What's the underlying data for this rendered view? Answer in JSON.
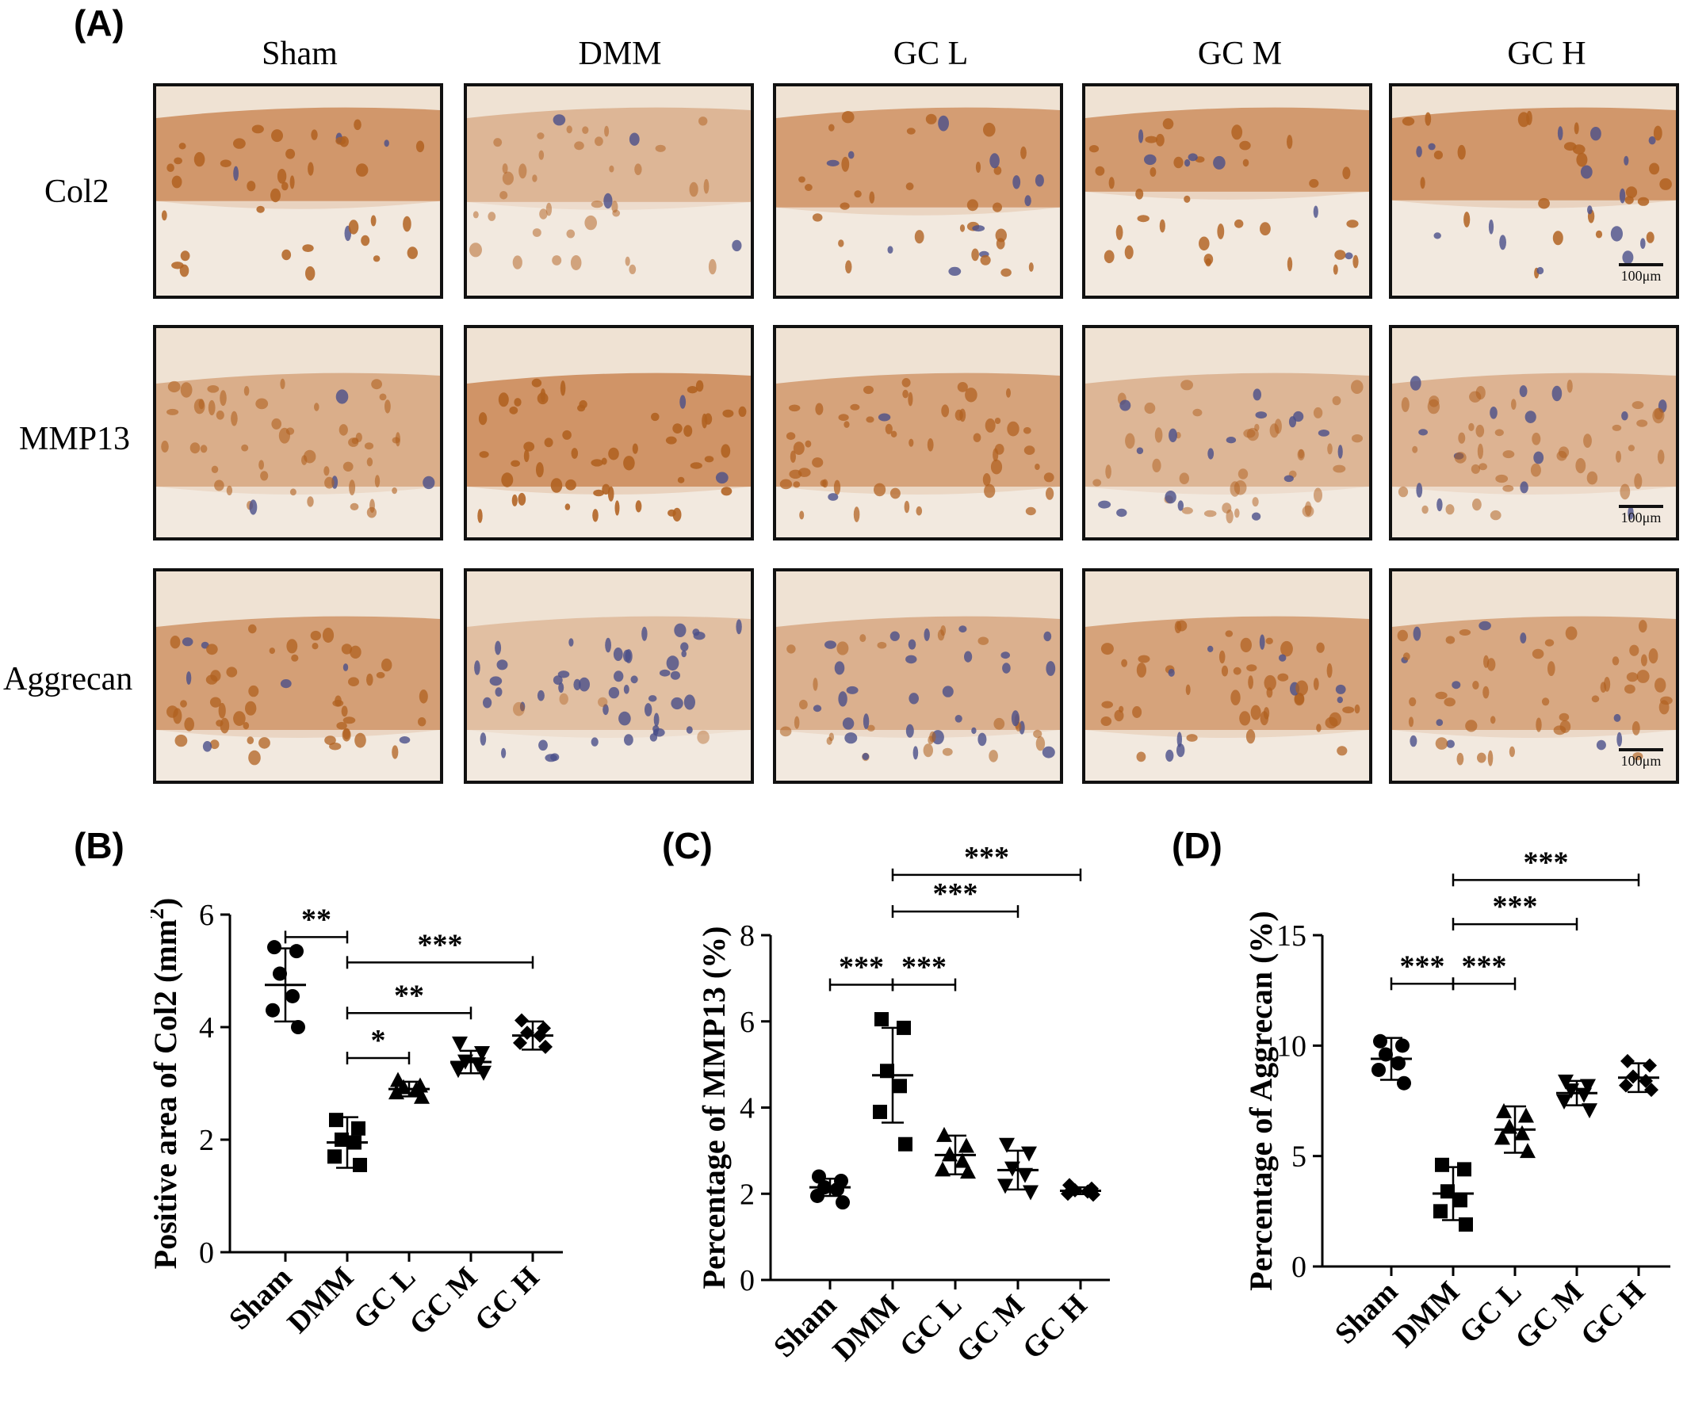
{
  "panels": {
    "A": "(A)",
    "B": "(B)",
    "C": "(C)",
    "D": "(D)"
  },
  "micrographs": {
    "columns": [
      "Sham",
      "DMM",
      "GC L",
      "GC M",
      "GC H"
    ],
    "rows": [
      "Col2",
      "MMP13",
      "Aggrecan"
    ],
    "scale_bar": "100μm",
    "colors": {
      "stain_brown": "#c9834f",
      "matrix": "#efe2d3",
      "nuclei_blue": "#4a4f8a"
    }
  },
  "chart_data": [
    {
      "type": "scatter",
      "ylabel": "Positive area of Col2 (mm²)",
      "ylabel_main": "Positive area of Col2 (mm",
      "ylabel_sup": "2",
      "ylabel_close": ")",
      "categories": [
        "Sham",
        "DMM",
        "GC L",
        "GC M",
        "GC H"
      ],
      "ylim": [
        0,
        6
      ],
      "yticks": [
        0,
        2,
        4,
        6
      ],
      "markers": [
        "circle",
        "square",
        "triangle",
        "triangle-down",
        "diamond"
      ],
      "points": [
        [
          5.42,
          5.35,
          4.95,
          4.55,
          4.3,
          4.0
        ],
        [
          2.35,
          2.2,
          2.0,
          1.95,
          1.7,
          1.55
        ],
        [
          3.05,
          2.95,
          2.92,
          2.88,
          2.83,
          2.75
        ],
        [
          3.72,
          3.55,
          3.4,
          3.35,
          3.25,
          3.2
        ],
        [
          4.12,
          3.98,
          3.9,
          3.85,
          3.72,
          3.65
        ]
      ],
      "mean": [
        4.75,
        1.95,
        2.9,
        3.38,
        3.85
      ],
      "sd": [
        0.65,
        0.45,
        0.13,
        0.2,
        0.25
      ],
      "significance": [
        {
          "from": 0,
          "to": 1,
          "label": "**",
          "y": 5.6
        },
        {
          "from": 1,
          "to": 4,
          "label": "***",
          "y": 5.15
        },
        {
          "from": 1,
          "to": 3,
          "label": "**",
          "y": 4.25
        },
        {
          "from": 1,
          "to": 2,
          "label": "*",
          "y": 3.45
        }
      ]
    },
    {
      "type": "scatter",
      "ylabel": "Percentage of MMP13 (%)",
      "categories": [
        "Sham",
        "DMM",
        "GC L",
        "GC M",
        "GC H"
      ],
      "ylim": [
        0,
        8
      ],
      "yticks": [
        0,
        2,
        4,
        6,
        8
      ],
      "markers": [
        "circle",
        "square",
        "triangle",
        "triangle-down",
        "diamond"
      ],
      "points": [
        [
          2.4,
          2.3,
          2.15,
          2.1,
          1.95,
          1.8
        ],
        [
          6.05,
          5.85,
          4.85,
          4.5,
          3.9,
          3.15
        ],
        [
          3.35,
          3.1,
          2.9,
          2.75,
          2.55,
          2.5
        ],
        [
          3.15,
          2.95,
          2.6,
          2.45,
          2.2,
          2.05
        ],
        [
          2.2,
          2.12,
          2.08,
          2.05,
          2.0,
          1.98
        ]
      ],
      "mean": [
        2.15,
        4.75,
        2.9,
        2.55,
        2.07
      ],
      "sd": [
        0.2,
        1.1,
        0.45,
        0.45,
        0.08
      ],
      "significance": [
        {
          "from": 1,
          "to": 4,
          "label": "***",
          "y": 9.4
        },
        {
          "from": 1,
          "to": 3,
          "label": "***",
          "y": 8.55
        },
        {
          "from": 0,
          "to": 1,
          "label": "***",
          "y": 6.85
        },
        {
          "from": 1,
          "to": 2,
          "label": "***",
          "y": 6.85
        }
      ]
    },
    {
      "type": "scatter",
      "ylabel": "Percentage of Aggrecan (%)",
      "categories": [
        "Sham",
        "DMM",
        "GC L",
        "GC M",
        "GC H"
      ],
      "ylim": [
        0,
        15
      ],
      "yticks": [
        0,
        5,
        10,
        15
      ],
      "markers": [
        "circle",
        "square",
        "triangle",
        "triangle-down",
        "diamond"
      ],
      "points": [
        [
          10.2,
          10.0,
          9.6,
          9.2,
          8.9,
          8.3
        ],
        [
          4.6,
          4.4,
          3.4,
          3.0,
          2.5,
          1.9
        ],
        [
          7.0,
          6.8,
          6.3,
          6.0,
          5.8,
          5.2
        ],
        [
          8.4,
          8.2,
          8.0,
          7.8,
          7.5,
          7.1
        ],
        [
          9.3,
          9.1,
          8.6,
          8.4,
          8.2,
          8.0
        ]
      ],
      "mean": [
        9.4,
        3.3,
        6.2,
        7.85,
        8.55
      ],
      "sd": [
        0.95,
        1.2,
        1.05,
        0.55,
        0.65
      ],
      "significance": [
        {
          "from": 1,
          "to": 4,
          "label": "***",
          "y": 17.5
        },
        {
          "from": 1,
          "to": 3,
          "label": "***",
          "y": 15.5
        },
        {
          "from": 0,
          "to": 1,
          "label": "***",
          "y": 12.8
        },
        {
          "from": 1,
          "to": 2,
          "label": "***",
          "y": 12.8
        }
      ]
    }
  ]
}
